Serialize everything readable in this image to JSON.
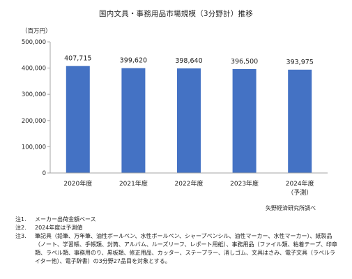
{
  "chart_data": {
    "type": "bar",
    "title": "国内文具・事務用品市場規模（3分野計）推移",
    "unit_label": "（百万円）",
    "categories": [
      "2020年度",
      "2021年度",
      "2022年度",
      "2023年度",
      "2024年度"
    ],
    "category_sublabels": [
      "",
      "",
      "",
      "",
      "（予測）"
    ],
    "values": [
      407715,
      399620,
      398640,
      396500,
      393975
    ],
    "data_labels": [
      "407,715",
      "399,620",
      "398,640",
      "396,500",
      "393,975"
    ],
    "ylim": [
      0,
      500000
    ],
    "yticks": [
      0,
      100000,
      200000,
      300000,
      400000,
      500000
    ],
    "ytick_labels": [
      "0",
      "100,000",
      "200,000",
      "300,000",
      "400,000",
      "500,000"
    ],
    "bar_color": "#4472C4",
    "axis_color": "#a6a6a6",
    "grid": false
  },
  "source": "矢野経済研究所調べ",
  "notes": [
    {
      "prefix": "注1.",
      "text": "メーカー出荷金額ベース"
    },
    {
      "prefix": "注2.",
      "text": "2024年度は予測値"
    },
    {
      "prefix": "注3.",
      "text": "筆記具（鉛筆、万年筆、油性ボールペン、水性ボールペン、シャープペンシル、油性マーカー、水性マーカー）、紙製品（ノート、学習帳、手帳類、封筒、アルバム、ルーズリーフ、レポート用紙）、事務用品（ファイル類、粘着テープ、印章類、ラベル類、事務用のり、黒板類、修正用品、カッター、ステープラー、消しゴム、文具はさみ、電子文具（ラベルライター他）、電子辞書）の3分野27品目を対象とする。"
    }
  ]
}
